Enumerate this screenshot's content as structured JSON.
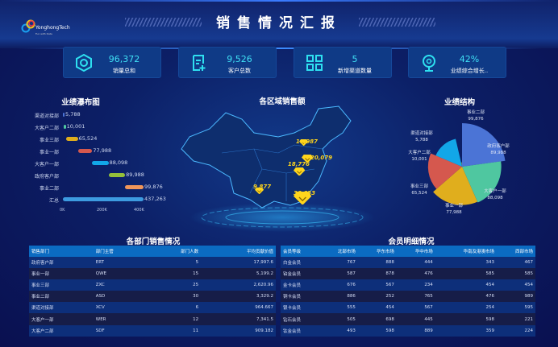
{
  "header": {
    "title": "销售情况汇报",
    "logo_text": "YonghongTech",
    "logo_sub": "Fun with Data"
  },
  "kpis": [
    {
      "value": "96,372",
      "label": "销量总和",
      "icon": "hexagon-nut-icon"
    },
    {
      "value": "9,526",
      "label": "客户总数",
      "icon": "document-add-icon"
    },
    {
      "value": "5",
      "label": "新增渠道数量",
      "icon": "grid-apps-icon"
    },
    {
      "value": "42%",
      "label": "业绩综合增长..",
      "icon": "webcam-icon"
    }
  ],
  "waterfall": {
    "title": "业绩瀑布图",
    "chart_data": {
      "type": "bar",
      "subtype": "waterfall",
      "categories": [
        "渠道对接部",
        "大客户二部",
        "事业三部",
        "事业一部",
        "大客户一部",
        "政府客户部",
        "事业二部",
        "汇总"
      ],
      "values": [
        5788,
        10001,
        65524,
        77988,
        88098,
        89988,
        99876,
        437263
      ],
      "labels": [
        "5,788",
        "10,001",
        "65,524",
        "77,988",
        "88,098",
        "89,988",
        "99,876",
        "437,263"
      ],
      "colors": [
        "#4b74d6",
        "#4fc7a0",
        "#e0ae1d",
        "#d5584e",
        "#12a7e8",
        "#94c03a",
        "#f0965a",
        "#3d9be0"
      ],
      "xticks": [
        "0K",
        "200K",
        "400K"
      ],
      "xlim": [
        0,
        437263
      ]
    }
  },
  "map": {
    "title": "各区域销售额",
    "points": [
      {
        "label": "10,987",
        "value": 10987
      },
      {
        "label": "20,079",
        "value": 20079
      },
      {
        "label": "18,776",
        "value": 18776
      },
      {
        "label": "9,877",
        "value": 9877
      },
      {
        "label": "36,653",
        "value": 36653
      }
    ]
  },
  "pie": {
    "title": "业绩结构",
    "chart_data": {
      "type": "pie",
      "subtype": "rose",
      "categories": [
        "事业二部",
        "政府客户部",
        "大客户一部",
        "事业一部",
        "事业三部",
        "大客户二部",
        "渠道对接部"
      ],
      "values": [
        99876,
        89988,
        88098,
        77988,
        65524,
        10001,
        5788
      ],
      "labels": [
        "99,876",
        "89,988",
        "88,098",
        "77,988",
        "65,524",
        "10,001",
        "5,788"
      ],
      "colors": [
        "#4b74d6",
        "#4fc7a0",
        "#e0ae1d",
        "#d5584e",
        "#12a7e8",
        "#94c03a",
        "#3d5fa8"
      ]
    }
  },
  "dept_table": {
    "title": "各部门销售情况",
    "headers": [
      "销售部门",
      "部门主管",
      "部门人数",
      "平均贡献价值"
    ],
    "rows": [
      [
        "政府客户部",
        "ERT",
        "5",
        "17,997.6"
      ],
      [
        "事业一部",
        "QWE",
        "15",
        "5,199.2"
      ],
      [
        "事业三部",
        "ZXC",
        "25",
        "2,620.96"
      ],
      [
        "事业二部",
        "ASD",
        "30",
        "3,329.2"
      ],
      [
        "渠道对接部",
        "XCV",
        "6",
        "964.667"
      ],
      [
        "大客户一部",
        "WER",
        "12",
        "7,341.5"
      ],
      [
        "大客户二部",
        "SDF",
        "11",
        "909.182"
      ]
    ]
  },
  "member_table": {
    "title": "会员明细情况",
    "headers": [
      "会员等级",
      "北部市场",
      "华东市场",
      "华中市场",
      "华南及港澳市场",
      "西部市场"
    ],
    "rows": [
      [
        "白金会员",
        "767",
        "888",
        "444",
        "343",
        "467"
      ],
      [
        "铂金会员",
        "587",
        "878",
        "476",
        "585",
        "585"
      ],
      [
        "金卡会员",
        "676",
        "567",
        "234",
        "454",
        "454"
      ],
      [
        "铜卡会员",
        "886",
        "252",
        "765",
        "476",
        "989"
      ],
      [
        "银卡会员",
        "555",
        "454",
        "567",
        "254",
        "595"
      ],
      [
        "钻石会员",
        "505",
        "698",
        "445",
        "598",
        "221"
      ],
      [
        "钛金会员",
        "493",
        "598",
        "889",
        "359",
        "224"
      ]
    ]
  }
}
